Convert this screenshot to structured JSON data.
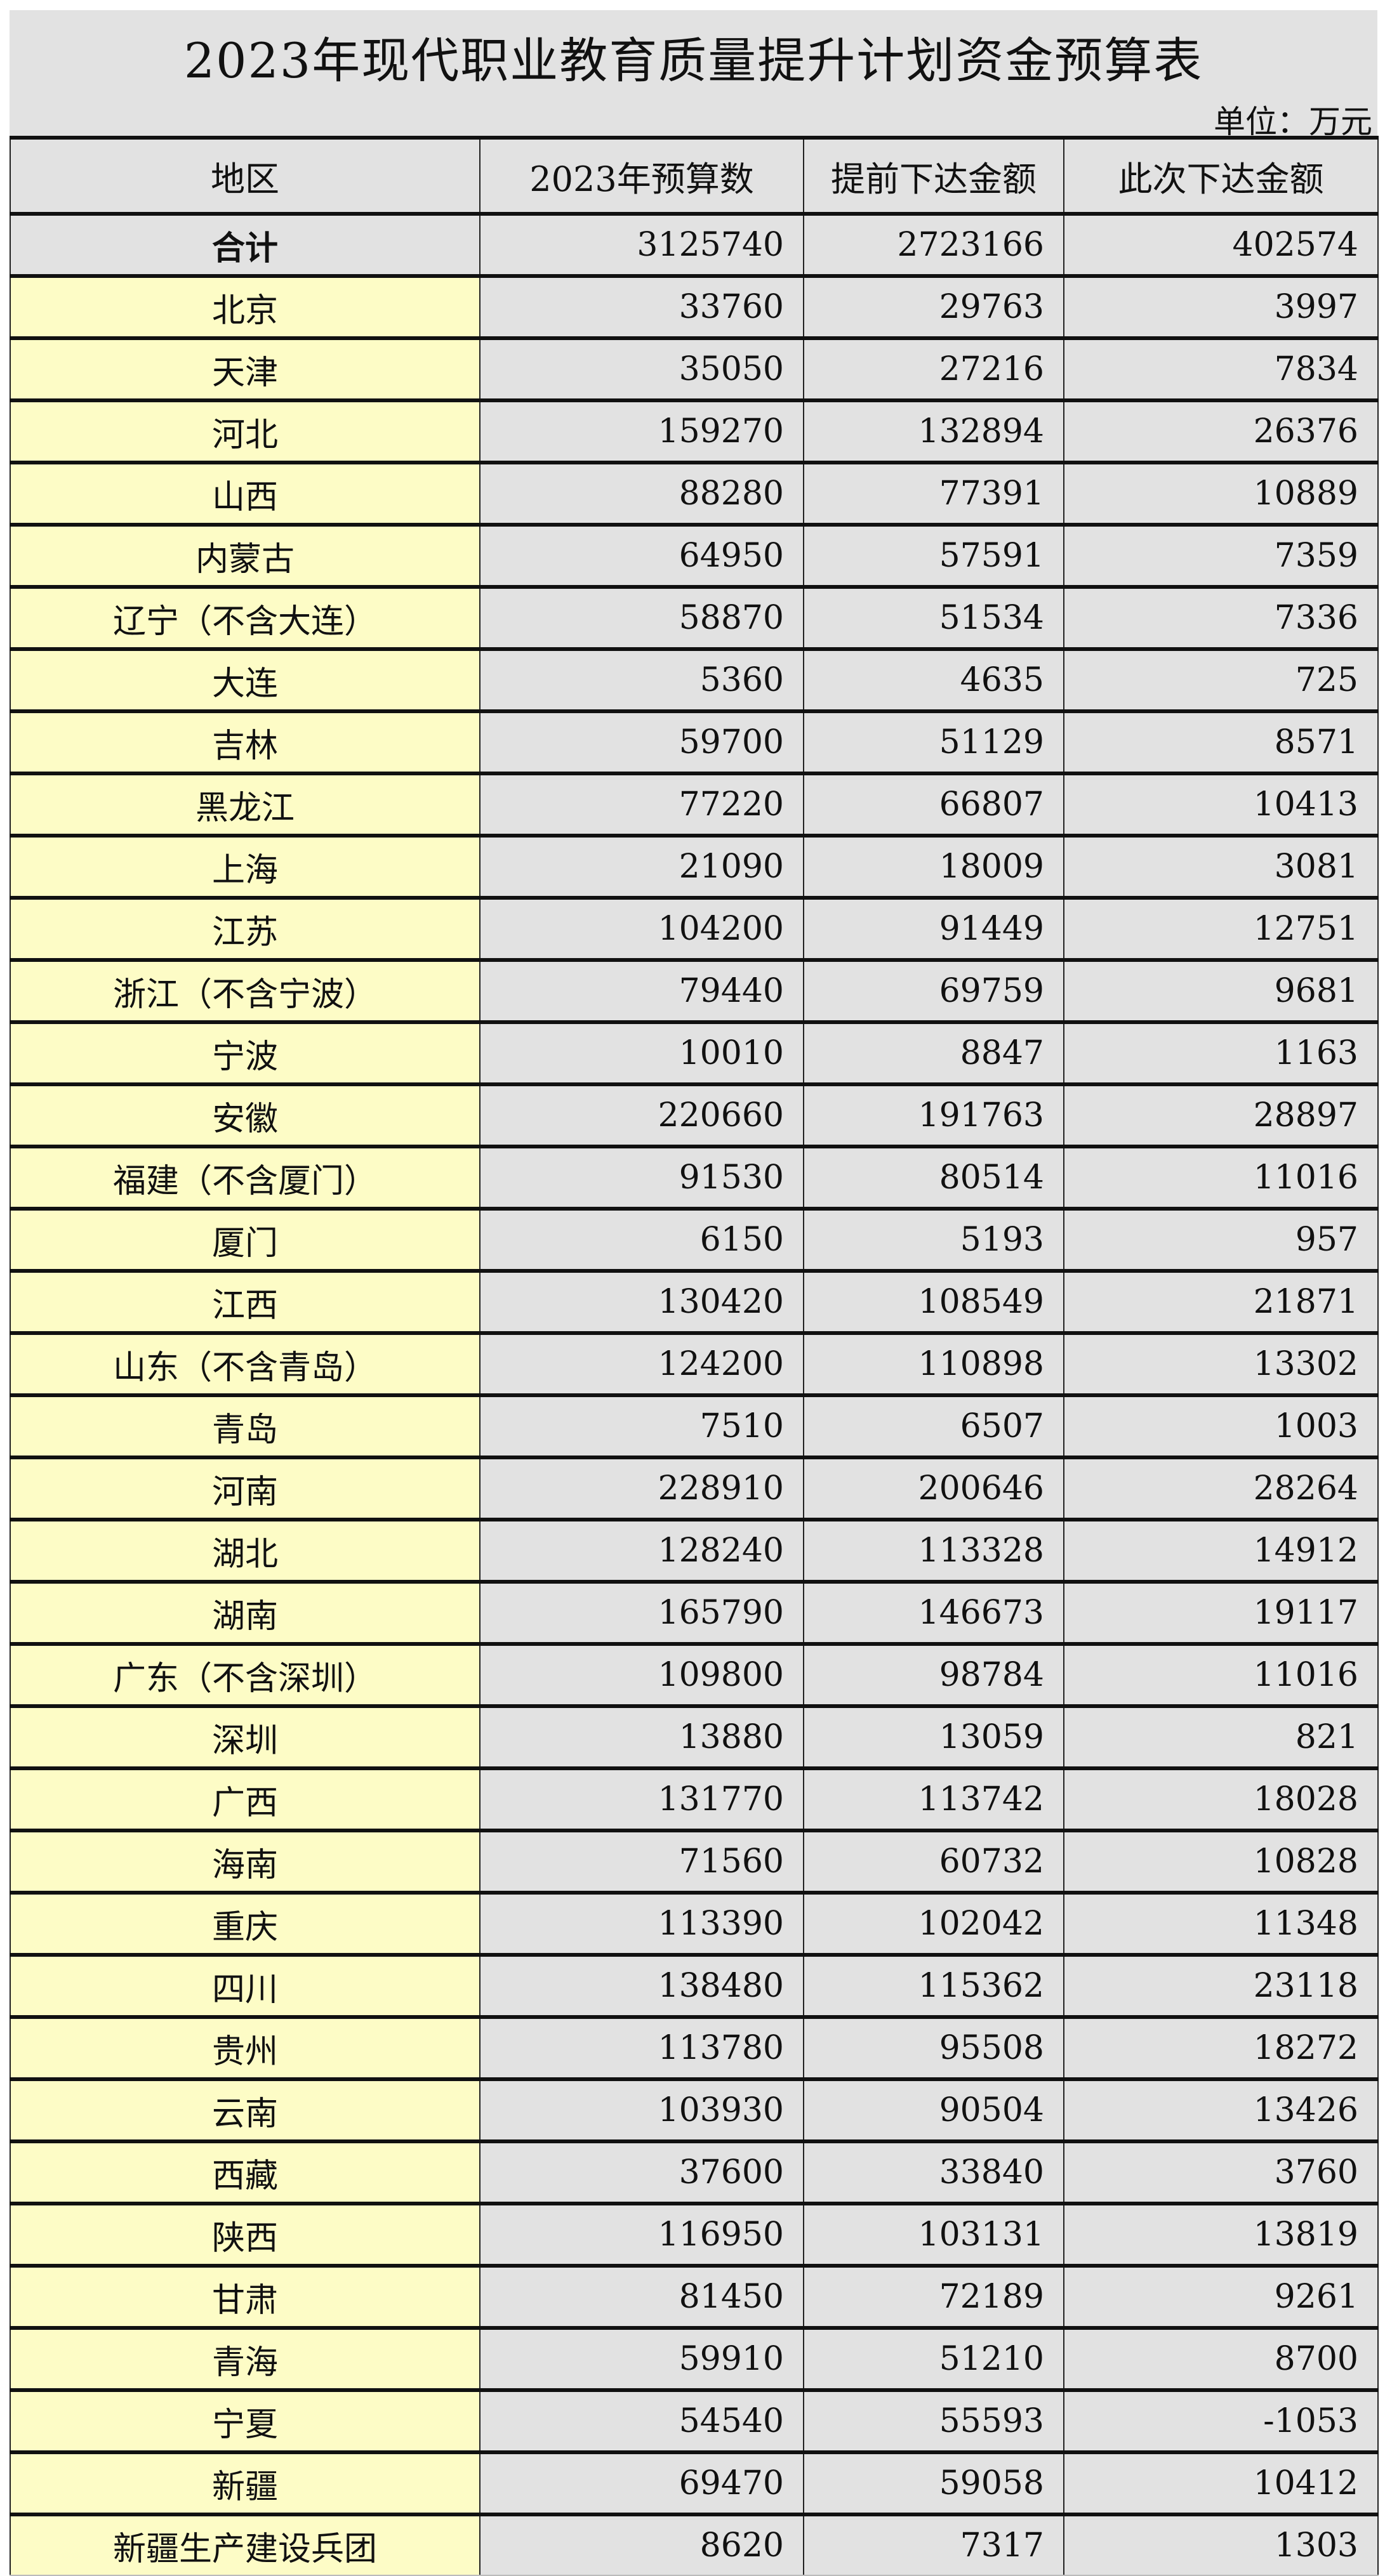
{
  "title": "2023年现代职业教育质量提升计划资金预算表",
  "unit": "单位：万元",
  "columns": [
    "地区",
    "2023年预算数",
    "提前下达金额",
    "此次下达金额"
  ],
  "colors": {
    "region_bg": "#fdfcc6",
    "cell_bg": "#e2e2e2"
  },
  "rows": [
    [
      "合计",
      "3125740",
      "2723166",
      "402574"
    ],
    [
      "北京",
      "33760",
      "29763",
      "3997"
    ],
    [
      "天津",
      "35050",
      "27216",
      "7834"
    ],
    [
      "河北",
      "159270",
      "132894",
      "26376"
    ],
    [
      "山西",
      "88280",
      "77391",
      "10889"
    ],
    [
      "内蒙古",
      "64950",
      "57591",
      "7359"
    ],
    [
      "辽宁（不含大连）",
      "58870",
      "51534",
      "7336"
    ],
    [
      "大连",
      "5360",
      "4635",
      "725"
    ],
    [
      "吉林",
      "59700",
      "51129",
      "8571"
    ],
    [
      "黑龙江",
      "77220",
      "66807",
      "10413"
    ],
    [
      "上海",
      "21090",
      "18009",
      "3081"
    ],
    [
      "江苏",
      "104200",
      "91449",
      "12751"
    ],
    [
      "浙江（不含宁波）",
      "79440",
      "69759",
      "9681"
    ],
    [
      "宁波",
      "10010",
      "8847",
      "1163"
    ],
    [
      "安徽",
      "220660",
      "191763",
      "28897"
    ],
    [
      "福建（不含厦门）",
      "91530",
      "80514",
      "11016"
    ],
    [
      "厦门",
      "6150",
      "5193",
      "957"
    ],
    [
      "江西",
      "130420",
      "108549",
      "21871"
    ],
    [
      "山东（不含青岛）",
      "124200",
      "110898",
      "13302"
    ],
    [
      "青岛",
      "7510",
      "6507",
      "1003"
    ],
    [
      "河南",
      "228910",
      "200646",
      "28264"
    ],
    [
      "湖北",
      "128240",
      "113328",
      "14912"
    ],
    [
      "湖南",
      "165790",
      "146673",
      "19117"
    ],
    [
      "广东（不含深圳）",
      "109800",
      "98784",
      "11016"
    ],
    [
      "深圳",
      "13880",
      "13059",
      "821"
    ],
    [
      "广西",
      "131770",
      "113742",
      "18028"
    ],
    [
      "海南",
      "71560",
      "60732",
      "10828"
    ],
    [
      "重庆",
      "113390",
      "102042",
      "11348"
    ],
    [
      "四川",
      "138480",
      "115362",
      "23118"
    ],
    [
      "贵州",
      "113780",
      "95508",
      "18272"
    ],
    [
      "云南",
      "103930",
      "90504",
      "13426"
    ],
    [
      "西藏",
      "37600",
      "33840",
      "3760"
    ],
    [
      "陕西",
      "116950",
      "103131",
      "13819"
    ],
    [
      "甘肃",
      "81450",
      "72189",
      "9261"
    ],
    [
      "青海",
      "59910",
      "51210",
      "8700"
    ],
    [
      "宁夏",
      "54540",
      "55593",
      "-1053"
    ],
    [
      "新疆",
      "69470",
      "59058",
      "10412"
    ],
    [
      "新疆生产建设兵团",
      "8620",
      "7317",
      "1303"
    ]
  ]
}
